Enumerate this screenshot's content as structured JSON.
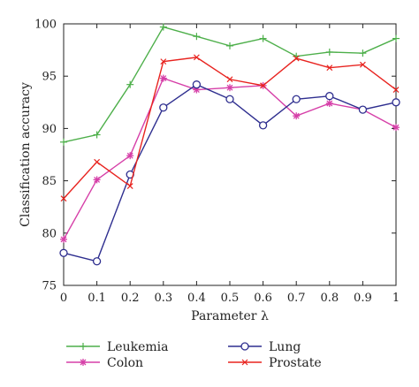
{
  "chart_data": {
    "type": "line",
    "xlabel": "Parameter λ",
    "ylabel": "Classification accuracy",
    "xlim": [
      0,
      1
    ],
    "ylim": [
      75,
      100
    ],
    "x_ticks": [
      "0",
      "0.1",
      "0.2",
      "0.3",
      "0.4",
      "0.5",
      "0.6",
      "0.7",
      "0.8",
      "0.9",
      "1"
    ],
    "y_ticks": [
      "75",
      "80",
      "85",
      "90",
      "95",
      "100"
    ],
    "x": [
      0,
      0.1,
      0.2,
      0.3,
      0.4,
      0.5,
      0.6,
      0.7,
      0.8,
      0.9,
      1.0
    ],
    "grid": false,
    "legend_position": "bottom",
    "series": [
      {
        "name": "Leukemia",
        "color": "#4daf4a",
        "marker": "plus",
        "values": [
          88.7,
          89.4,
          94.2,
          99.7,
          98.8,
          97.9,
          98.6,
          96.9,
          97.3,
          97.2,
          98.6
        ]
      },
      {
        "name": "Colon",
        "color": "#d63fa8",
        "marker": "star",
        "values": [
          79.4,
          85.1,
          87.4,
          94.8,
          93.7,
          93.9,
          94.1,
          91.2,
          92.4,
          91.8,
          90.1
        ]
      },
      {
        "name": "Lung",
        "color": "#2e2e8f",
        "marker": "circle",
        "values": [
          78.1,
          77.3,
          85.6,
          92.0,
          94.2,
          92.8,
          90.3,
          92.8,
          93.1,
          91.8,
          92.5
        ]
      },
      {
        "name": "Prostate",
        "color": "#e8231f",
        "marker": "x",
        "values": [
          83.3,
          86.8,
          84.5,
          96.4,
          96.8,
          94.7,
          94.1,
          96.7,
          95.8,
          96.1,
          93.7
        ]
      }
    ]
  }
}
